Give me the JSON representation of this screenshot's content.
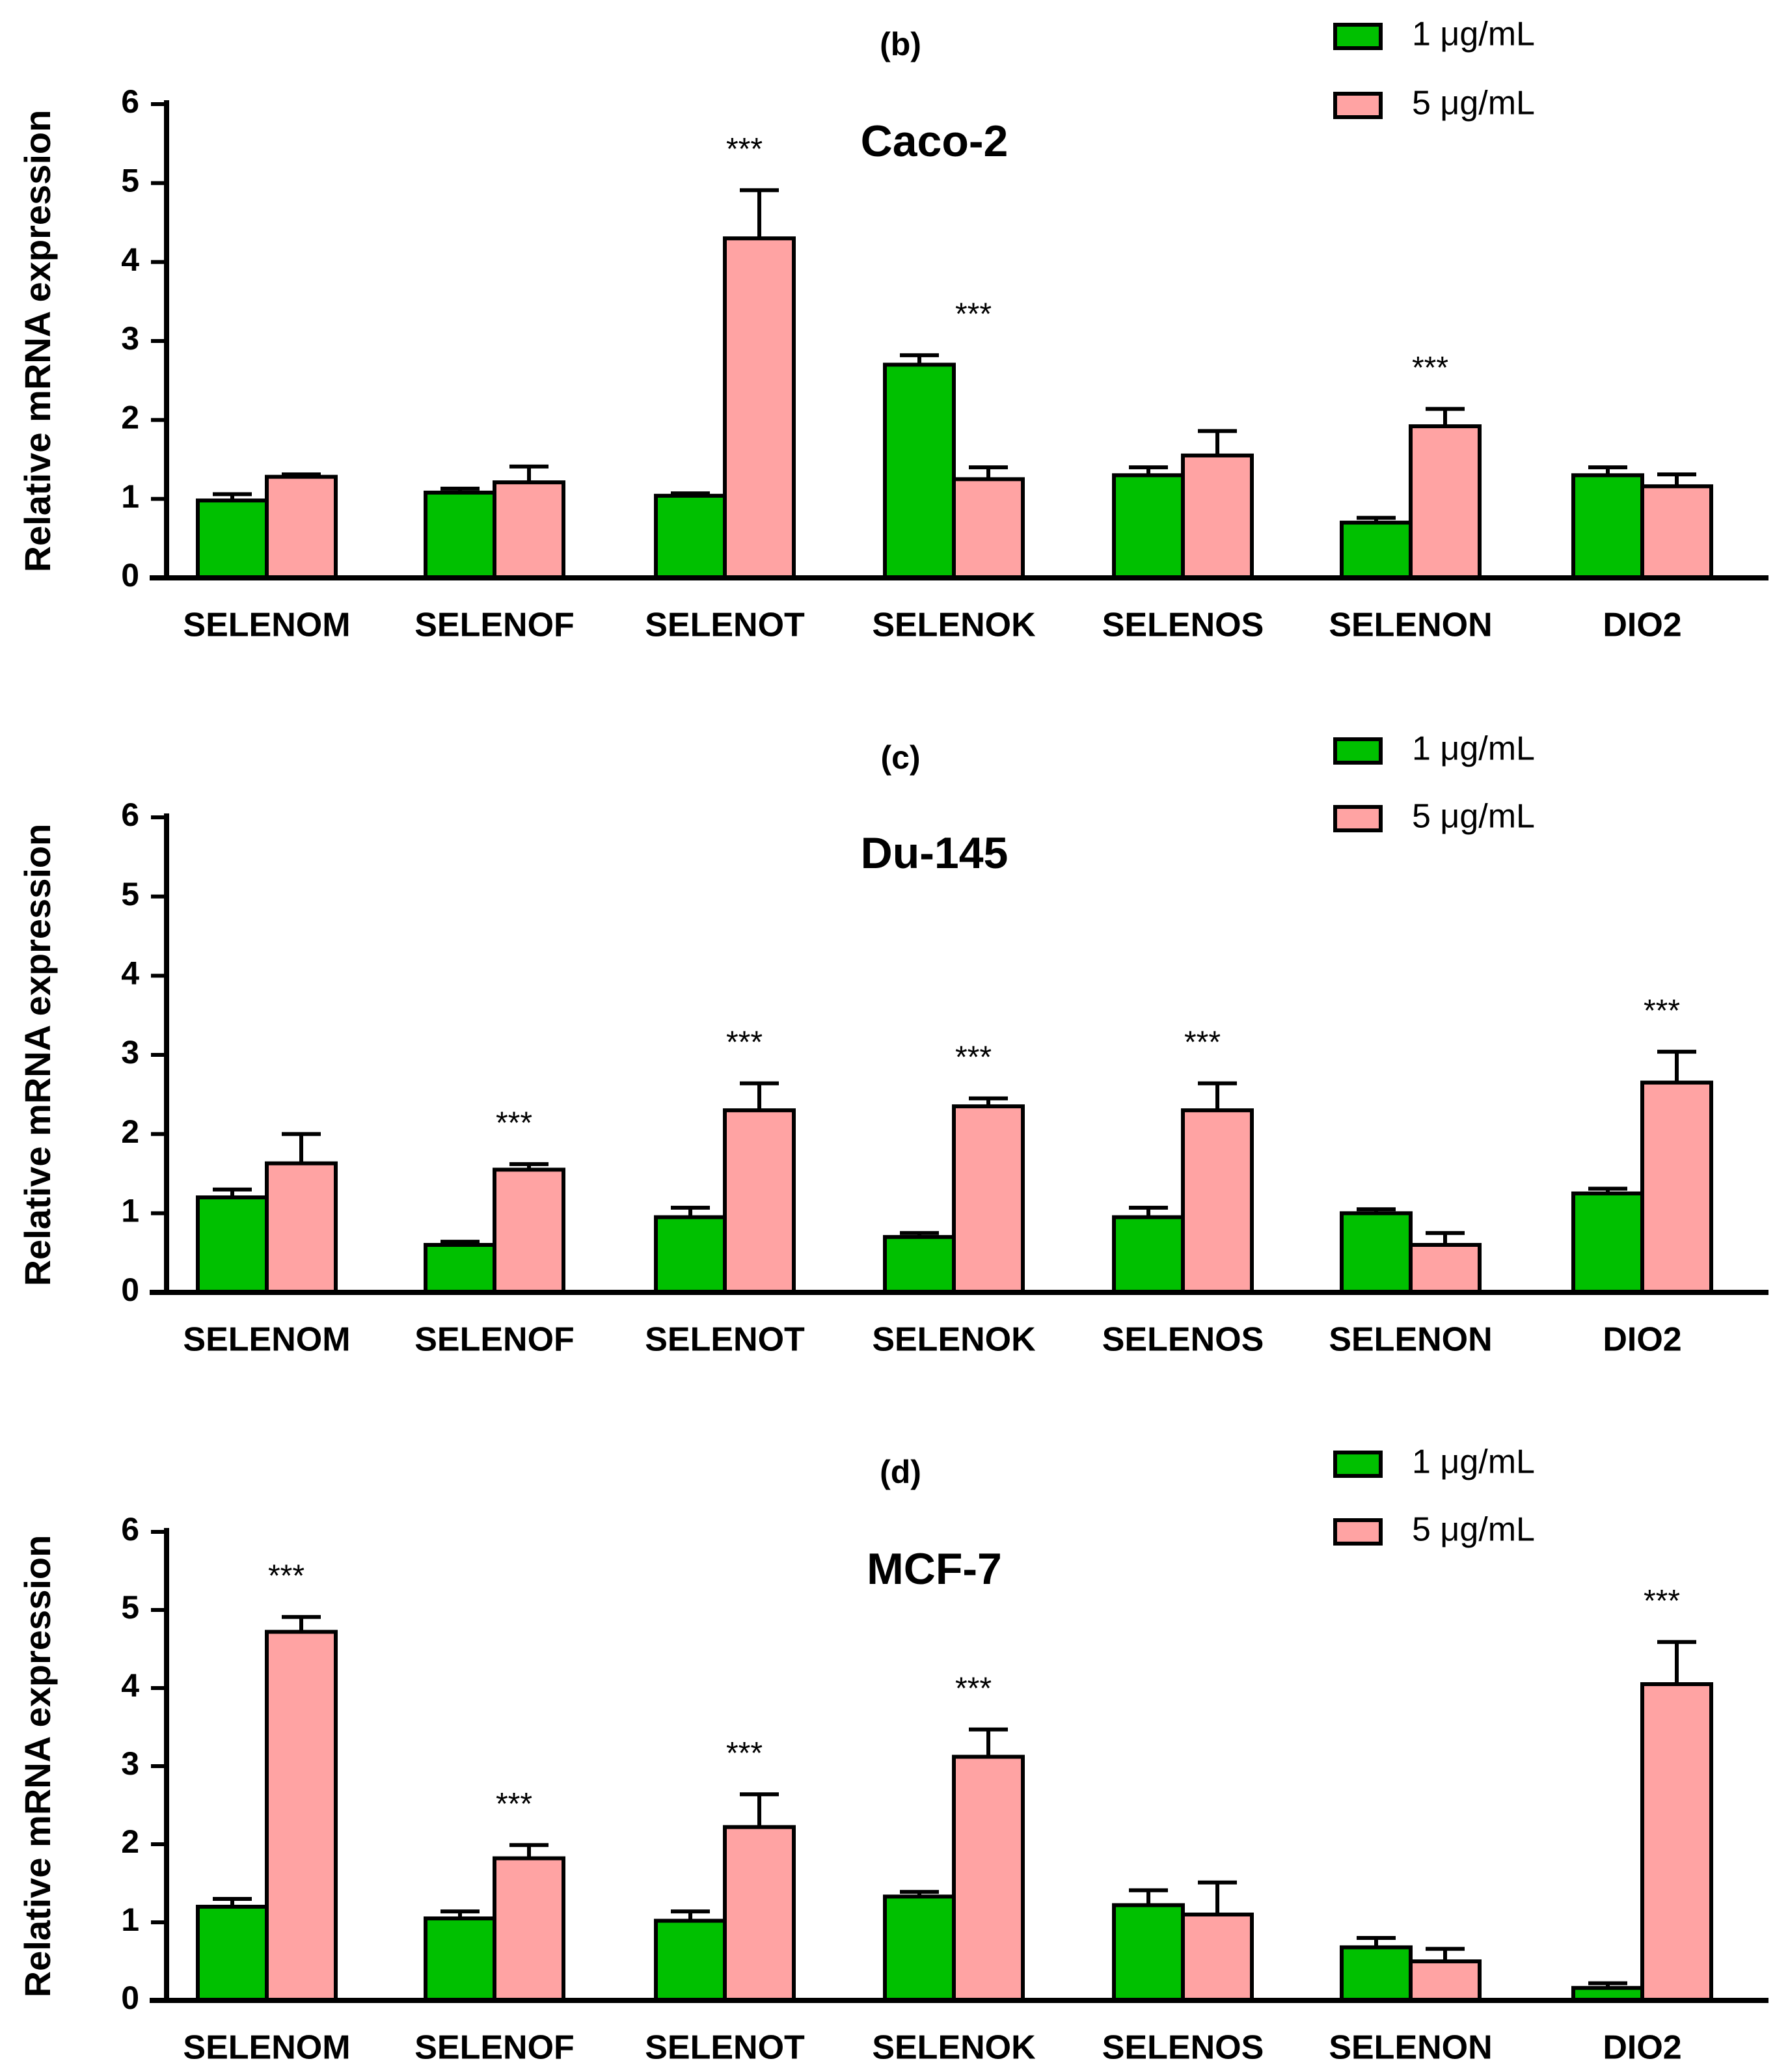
{
  "chart_data": [
    {
      "type": "bar",
      "panel_label": "(b)",
      "title": "Caco-2",
      "ylabel": "Relative mRNA expression",
      "ylim": [
        0,
        6
      ],
      "yticks": [
        0,
        1,
        2,
        3,
        4,
        5,
        6
      ],
      "categories": [
        "SELENOM",
        "SELENOF",
        "SELENOT",
        "SELENOK",
        "SELENOS",
        "SELENON",
        "DIO2"
      ],
      "series": [
        {
          "name": "1 μg/mL",
          "color": "#00c000",
          "values": [
            0.98,
            1.08,
            1.04,
            2.7,
            1.3,
            0.7,
            1.3
          ],
          "errors": [
            0.08,
            0.05,
            0.03,
            0.12,
            0.1,
            0.06,
            0.1
          ]
        },
        {
          "name": "5 μg/mL",
          "color": "#ffa3a3",
          "values": [
            1.28,
            1.21,
            4.3,
            1.25,
            1.55,
            1.92,
            1.16
          ],
          "errors": [
            0.03,
            0.2,
            0.61,
            0.15,
            0.31,
            0.22,
            0.15
          ]
        }
      ],
      "annotations": [
        "",
        "",
        "***",
        "***",
        "",
        "***",
        ""
      ]
    },
    {
      "type": "bar",
      "panel_label": "(c)",
      "title": "Du-145",
      "ylabel": "Relative mRNA expression",
      "ylim": [
        0,
        6
      ],
      "yticks": [
        0,
        1,
        2,
        3,
        4,
        5,
        6
      ],
      "categories": [
        "SELENOM",
        "SELENOF",
        "SELENOT",
        "SELENOK",
        "SELENOS",
        "SELENON",
        "DIO2"
      ],
      "series": [
        {
          "name": "1 μg/mL",
          "color": "#00c000",
          "values": [
            1.2,
            0.6,
            0.95,
            0.7,
            0.95,
            1.0,
            1.25
          ],
          "errors": [
            0.1,
            0.04,
            0.12,
            0.05,
            0.12,
            0.05,
            0.06
          ]
        },
        {
          "name": "5 μg/mL",
          "color": "#ffa3a3",
          "values": [
            1.63,
            1.55,
            2.3,
            2.35,
            2.3,
            0.6,
            2.65
          ],
          "errors": [
            0.37,
            0.07,
            0.34,
            0.1,
            0.34,
            0.15,
            0.39
          ]
        }
      ],
      "annotations": [
        "",
        "***",
        "***",
        "***",
        "***",
        "",
        "***"
      ]
    },
    {
      "type": "bar",
      "panel_label": "(d)",
      "title": "MCF-7",
      "ylabel": "Relative mRNA expression",
      "ylim": [
        0,
        6
      ],
      "yticks": [
        0,
        1,
        2,
        3,
        4,
        5,
        6
      ],
      "categories": [
        "SELENOM",
        "SELENOF",
        "SELENOT",
        "SELENOK",
        "SELENOS",
        "SELENON",
        "DIO2"
      ],
      "series": [
        {
          "name": "1 μg/mL",
          "color": "#00c000",
          "values": [
            1.2,
            1.05,
            1.02,
            1.33,
            1.22,
            0.68,
            0.16
          ],
          "errors": [
            0.1,
            0.09,
            0.12,
            0.06,
            0.19,
            0.12,
            0.06
          ]
        },
        {
          "name": "5 μg/mL",
          "color": "#ffa3a3",
          "values": [
            4.72,
            1.82,
            2.22,
            3.12,
            1.1,
            0.5,
            4.05
          ],
          "errors": [
            0.19,
            0.17,
            0.42,
            0.35,
            0.41,
            0.16,
            0.54
          ]
        }
      ],
      "annotations": [
        "***",
        "***",
        "***",
        "***",
        "",
        "",
        "***"
      ]
    }
  ]
}
